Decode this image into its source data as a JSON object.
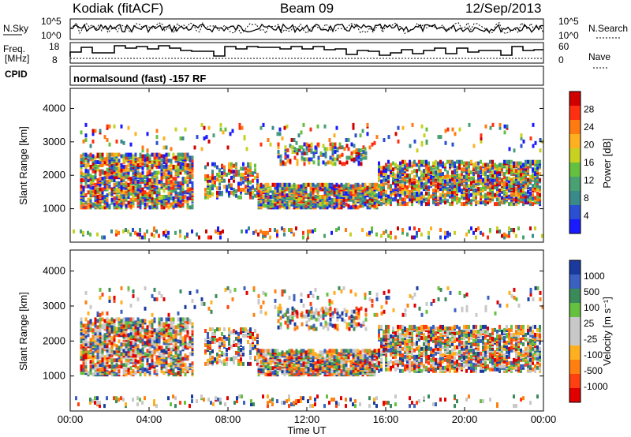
{
  "header": {
    "station": "Kodiak (fitACF)",
    "beam": "Beam 09",
    "date": "12/Sep/2013"
  },
  "top_panels": {
    "nsky_label": "N.Sky",
    "nsky_ticks": [
      "10^5",
      "10^0"
    ],
    "nsearch_label": "N.Search",
    "freq_label_line1": "Freq.",
    "freq_label_line2": "[MHz]",
    "freq_ticks": [
      "18",
      "8"
    ],
    "nave_label": "Nave",
    "nave_ticks": [
      "60",
      "0"
    ],
    "cpid_label": "CPID",
    "cpid_text": "normalsound (fast) -157 RF"
  },
  "colors": {
    "power_scale": [
      "#1a1aff",
      "#2a4fd0",
      "#3a8a8a",
      "#49a070",
      "#66c040",
      "#c8d020",
      "#ffb020",
      "#ff7a10",
      "#ff3010",
      "#d00000"
    ],
    "velocity_scale": [
      "#1a3aa0",
      "#3a60c0",
      "#3a8a5a",
      "#66c040",
      "#c8c8c8",
      "#c8c8c8",
      "#ffb020",
      "#ff8010",
      "#ff4010",
      "#e00000"
    ]
  },
  "chart_data": [
    {
      "type": "heatmap",
      "title": "Power",
      "ylabel": "Slant Range [km]",
      "xlabel": "Time UT",
      "x_ticks": [
        "00:00",
        "04:00",
        "08:00",
        "12:00",
        "16:00",
        "20:00",
        "00:00"
      ],
      "y_ticks": [
        "1000",
        "2000",
        "3000",
        "4000"
      ],
      "ylim": [
        0,
        4600
      ],
      "colorbar_label": "Power [dB]",
      "colorbar_ticks": [
        "4",
        "8",
        "12",
        "16",
        "20",
        "24",
        "28"
      ]
    },
    {
      "type": "heatmap",
      "title": "Velocity",
      "ylabel": "Slant Range [km]",
      "xlabel": "Time UT",
      "x_ticks": [
        "00:00",
        "04:00",
        "08:00",
        "12:00",
        "16:00",
        "20:00",
        "00:00"
      ],
      "y_ticks": [
        "1000",
        "2000",
        "3000",
        "4000"
      ],
      "ylim": [
        0,
        4600
      ],
      "colorbar_label": "Velocity [m s⁻¹]",
      "colorbar_ticks": [
        "1000",
        "500",
        "100",
        "25",
        "-25",
        "-100",
        "-500",
        "-1000"
      ]
    }
  ]
}
